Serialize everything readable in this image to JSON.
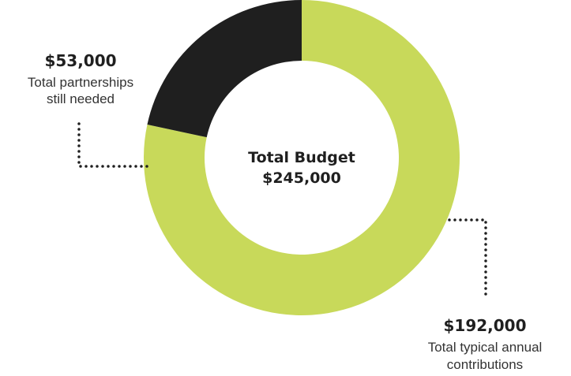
{
  "chart_data": {
    "type": "pie",
    "center_label": {
      "line1": "Total Budget",
      "line2": "$245,000"
    },
    "total": 245000,
    "slices": [
      {
        "key": "contributions",
        "value": 192000,
        "value_label": "$192,000",
        "desc_line1": "Total typical annual",
        "desc_line2": "contributions",
        "color": "#c8d95a"
      },
      {
        "key": "partnerships",
        "value": 53000,
        "value_label": "$53,000",
        "desc_line1": "Total partnerships",
        "desc_line2": "still needed",
        "color": "#1f1f1f"
      }
    ]
  }
}
